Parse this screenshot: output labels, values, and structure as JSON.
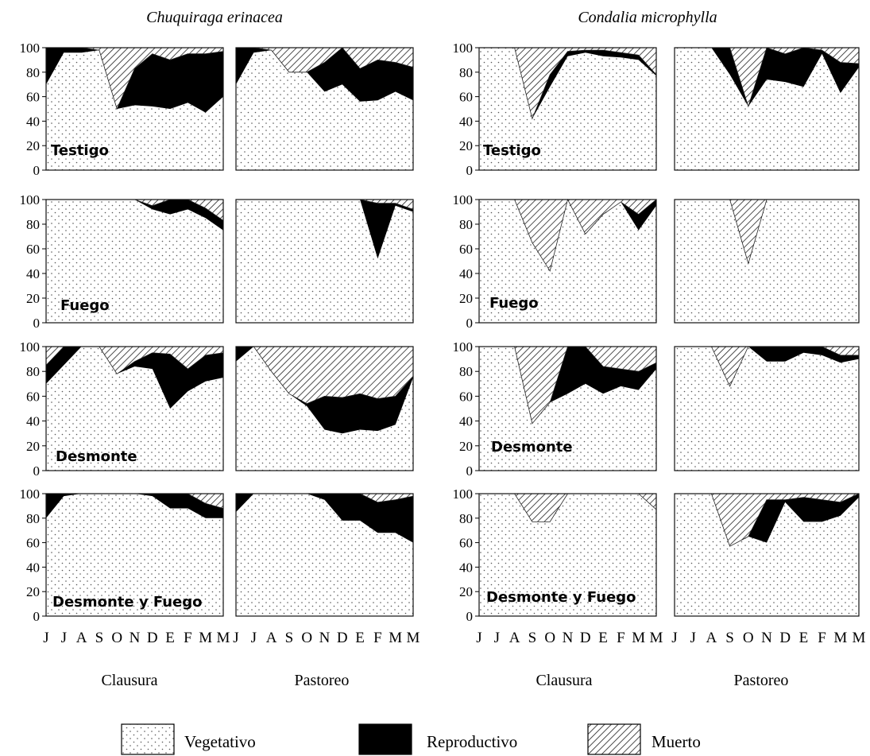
{
  "figure": {
    "species": [
      "Chuquiraga erinacea",
      "Condalia microphylla"
    ],
    "treatments": [
      "Testigo",
      "Fuego",
      "Desmonte",
      "Desmonte y Fuego"
    ],
    "groups": [
      "Clausura",
      "Pastoreo"
    ],
    "colors": {
      "reproductivo": "#000000",
      "vegetativo_fill": "#ffffff",
      "dots": "#555555",
      "muerto_hatch": "#222222"
    },
    "legend": [
      {
        "key": "vegetativo",
        "label": "Vegetativo"
      },
      {
        "key": "reproductivo",
        "label": "Reproductivo"
      },
      {
        "key": "muerto",
        "label": "Muerto"
      }
    ]
  },
  "chart_data": [
    {
      "species": "Chuquiraga erinacea",
      "type": "area",
      "ylim": [
        0,
        100
      ],
      "yticks": [
        0,
        20,
        40,
        60,
        80,
        100
      ],
      "stack": [
        "Vegetativo",
        "Reproductivo",
        "Muerto"
      ],
      "panels": [
        {
          "treatment": "Testigo",
          "clausura": {
            "months": [
              "J",
              "J",
              "A",
              "S",
              "O",
              "N",
              "D",
              "E",
              "F",
              "M",
              "M"
            ],
            "vegetativo": [
              70,
              96,
              96,
              98,
              50,
              53,
              52,
              50,
              55,
              47,
              60
            ],
            "reproductivo_top": [
              100,
              100,
              100,
              98,
              50,
              83,
              95,
              90,
              95,
              95,
              97
            ],
            "muerto_top": [
              100,
              100,
              100,
              100,
              100,
              100,
              100,
              100,
              100,
              100,
              100
            ]
          },
          "pastoreo": {
            "months": [
              "J",
              "J",
              "A",
              "S",
              "O",
              "N",
              "D",
              "E",
              "F",
              "M",
              "M"
            ],
            "vegetativo": [
              70,
              96,
              98,
              80,
              80,
              64,
              70,
              56,
              57,
              64,
              57
            ],
            "reproductivo_top": [
              100,
              100,
              98,
              80,
              80,
              88,
              100,
              83,
              90,
              88,
              84
            ],
            "muerto_top": [
              100,
              100,
              100,
              100,
              100,
              100,
              100,
              100,
              100,
              100,
              100
            ]
          }
        },
        {
          "treatment": "Fuego",
          "clausura": {
            "months": [
              "J",
              "J",
              "A",
              "S",
              "O",
              "N",
              "D",
              "E",
              "F",
              "M",
              "M"
            ],
            "vegetativo": [
              100,
              100,
              100,
              100,
              100,
              100,
              92,
              88,
              92,
              85,
              75
            ],
            "reproductivo_top": [
              100,
              100,
              100,
              100,
              100,
              100,
              95,
              100,
              100,
              93,
              83
            ],
            "muerto_top": [
              100,
              100,
              100,
              100,
              100,
              100,
              100,
              100,
              100,
              100,
              100
            ]
          },
          "pastoreo": {
            "months": [
              "J",
              "J",
              "A",
              "S",
              "O",
              "N",
              "D",
              "E",
              "F",
              "M",
              "M"
            ],
            "vegetativo": [
              100,
              100,
              100,
              100,
              100,
              100,
              100,
              100,
              52,
              95,
              90
            ],
            "reproductivo_top": [
              100,
              100,
              100,
              100,
              100,
              100,
              100,
              100,
              97,
              97,
              92
            ],
            "muerto_top": [
              100,
              100,
              100,
              100,
              100,
              100,
              100,
              100,
              100,
              100,
              100
            ]
          }
        },
        {
          "treatment": "Desmonte",
          "clausura": {
            "months": [
              "J",
              "J",
              "A",
              "S",
              "O",
              "N",
              "D",
              "E",
              "F",
              "M",
              "M"
            ],
            "vegetativo": [
              70,
              85,
              100,
              100,
              78,
              84,
              82,
              50,
              64,
              72,
              75
            ],
            "reproductivo_top": [
              85,
              100,
              100,
              100,
              78,
              88,
              95,
              94,
              82,
              93,
              95
            ],
            "muerto_top": [
              100,
              100,
              100,
              100,
              100,
              100,
              100,
              100,
              100,
              100,
              100
            ]
          },
          "pastoreo": {
            "months": [
              "J",
              "J",
              "A",
              "S",
              "O",
              "N",
              "D",
              "E",
              "F",
              "M",
              "M"
            ],
            "vegetativo": [
              88,
              100,
              80,
              62,
              52,
              33,
              30,
              33,
              32,
              37,
              75
            ],
            "reproductivo_top": [
              100,
              100,
              80,
              62,
              54,
              60,
              59,
              62,
              58,
              60,
              76
            ],
            "muerto_top": [
              100,
              100,
              100,
              100,
              100,
              100,
              100,
              100,
              100,
              100,
              100
            ]
          }
        },
        {
          "treatment": "Desmonte y Fuego",
          "clausura": {
            "months": [
              "J",
              "J",
              "A",
              "S",
              "O",
              "N",
              "D",
              "E",
              "F",
              "M",
              "M"
            ],
            "vegetativo": [
              80,
              98,
              100,
              100,
              100,
              100,
              98,
              88,
              88,
              80,
              80
            ],
            "reproductivo_top": [
              100,
              100,
              100,
              100,
              100,
              100,
              100,
              100,
              100,
              92,
              88
            ],
            "muerto_top": [
              100,
              100,
              100,
              100,
              100,
              100,
              100,
              100,
              100,
              100,
              100
            ]
          },
          "pastoreo": {
            "months": [
              "J",
              "J",
              "A",
              "S",
              "O",
              "N",
              "D",
              "E",
              "F",
              "M",
              "M"
            ],
            "vegetativo": [
              85,
              100,
              100,
              100,
              100,
              95,
              78,
              78,
              68,
              68,
              60
            ],
            "reproductivo_top": [
              100,
              100,
              100,
              100,
              100,
              100,
              100,
              100,
              93,
              95,
              98
            ],
            "muerto_top": [
              100,
              100,
              100,
              100,
              100,
              100,
              100,
              100,
              100,
              100,
              100
            ]
          }
        }
      ]
    },
    {
      "species": "Condalia microphylla",
      "type": "area",
      "ylim": [
        0,
        100
      ],
      "yticks": [
        0,
        20,
        40,
        60,
        80,
        100
      ],
      "stack": [
        "Vegetativo",
        "Reproductivo",
        "Muerto"
      ],
      "panels": [
        {
          "treatment": "Testigo",
          "clausura": {
            "months": [
              "J",
              "J",
              "A",
              "S",
              "O",
              "N",
              "D",
              "E",
              "F",
              "M",
              "M"
            ],
            "vegetativo": [
              100,
              100,
              100,
              42,
              68,
              93,
              96,
              93,
              92,
              90,
              77
            ],
            "reproductivo_top": [
              100,
              100,
              100,
              42,
              78,
              97,
              98,
              98,
              96,
              94,
              78
            ],
            "muerto_top": [
              100,
              100,
              100,
              100,
              100,
              100,
              100,
              100,
              100,
              100,
              100
            ]
          },
          "pastoreo": {
            "months": [
              "J",
              "J",
              "A",
              "S",
              "O",
              "N",
              "D",
              "E",
              "F",
              "M",
              "M"
            ],
            "vegetativo": [
              100,
              100,
              100,
              78,
              52,
              74,
              72,
              68,
              95,
              63,
              84
            ],
            "reproductivo_top": [
              100,
              100,
              100,
              100,
              52,
              100,
              95,
              100,
              98,
              88,
              87
            ],
            "muerto_top": [
              100,
              100,
              100,
              100,
              100,
              100,
              100,
              100,
              100,
              100,
              100
            ]
          }
        },
        {
          "treatment": "Fuego",
          "clausura": {
            "months": [
              "J",
              "J",
              "A",
              "S",
              "O",
              "N",
              "D",
              "E",
              "F",
              "M",
              "M"
            ],
            "vegetativo": [
              100,
              100,
              100,
              65,
              42,
              100,
              72,
              88,
              98,
              75,
              95
            ],
            "reproductivo_top": [
              100,
              100,
              100,
              65,
              42,
              100,
              72,
              88,
              98,
              88,
              100
            ],
            "muerto_top": [
              100,
              100,
              100,
              100,
              100,
              100,
              100,
              100,
              100,
              100,
              100
            ]
          },
          "pastoreo": {
            "months": [
              "J",
              "J",
              "A",
              "S",
              "O",
              "N",
              "D",
              "E",
              "F",
              "M",
              "M"
            ],
            "vegetativo": [
              100,
              100,
              100,
              100,
              48,
              100,
              100,
              100,
              100,
              100,
              100
            ],
            "reproductivo_top": [
              100,
              100,
              100,
              100,
              48,
              100,
              100,
              100,
              100,
              100,
              100
            ],
            "muerto_top": [
              100,
              100,
              100,
              100,
              100,
              100,
              100,
              100,
              100,
              100,
              100
            ]
          }
        },
        {
          "treatment": "Desmonte",
          "clausura": {
            "months": [
              "J",
              "J",
              "A",
              "S",
              "O",
              "N",
              "D",
              "E",
              "F",
              "M",
              "M"
            ],
            "vegetativo": [
              100,
              100,
              100,
              38,
              55,
              62,
              70,
              62,
              68,
              65,
              82
            ],
            "reproductivo_top": [
              100,
              100,
              100,
              38,
              55,
              100,
              100,
              84,
              82,
              80,
              87
            ],
            "muerto_top": [
              100,
              100,
              100,
              100,
              100,
              100,
              100,
              100,
              100,
              100,
              100
            ]
          },
          "pastoreo": {
            "months": [
              "J",
              "J",
              "A",
              "S",
              "O",
              "N",
              "D",
              "E",
              "F",
              "M",
              "M"
            ],
            "vegetativo": [
              100,
              100,
              100,
              68,
              100,
              88,
              88,
              95,
              93,
              87,
              90
            ],
            "reproductivo_top": [
              100,
              100,
              100,
              68,
              100,
              100,
              100,
              100,
              100,
              93,
              93
            ],
            "muerto_top": [
              100,
              100,
              100,
              100,
              100,
              100,
              100,
              100,
              100,
              100,
              100
            ]
          }
        },
        {
          "treatment": "Desmonte y Fuego",
          "clausura": {
            "months": [
              "J",
              "J",
              "A",
              "S",
              "O",
              "N",
              "D",
              "E",
              "F",
              "M",
              "M"
            ],
            "vegetativo": [
              100,
              100,
              100,
              77,
              77,
              100,
              100,
              100,
              100,
              100,
              87
            ],
            "reproductivo_top": [
              100,
              100,
              100,
              77,
              77,
              100,
              100,
              100,
              100,
              100,
              87
            ],
            "muerto_top": [
              100,
              100,
              100,
              100,
              100,
              100,
              100,
              100,
              100,
              100,
              100
            ]
          },
          "pastoreo": {
            "months": [
              "J",
              "J",
              "A",
              "S",
              "O",
              "N",
              "D",
              "E",
              "F",
              "M",
              "M"
            ],
            "vegetativo": [
              100,
              100,
              100,
              57,
              65,
              60,
              93,
              77,
              77,
              82,
              97
            ],
            "reproductivo_top": [
              100,
              100,
              100,
              57,
              65,
              95,
              95,
              97,
              95,
              93,
              100
            ],
            "muerto_top": [
              100,
              100,
              100,
              100,
              100,
              100,
              100,
              100,
              100,
              100,
              100
            ]
          }
        }
      ]
    }
  ]
}
